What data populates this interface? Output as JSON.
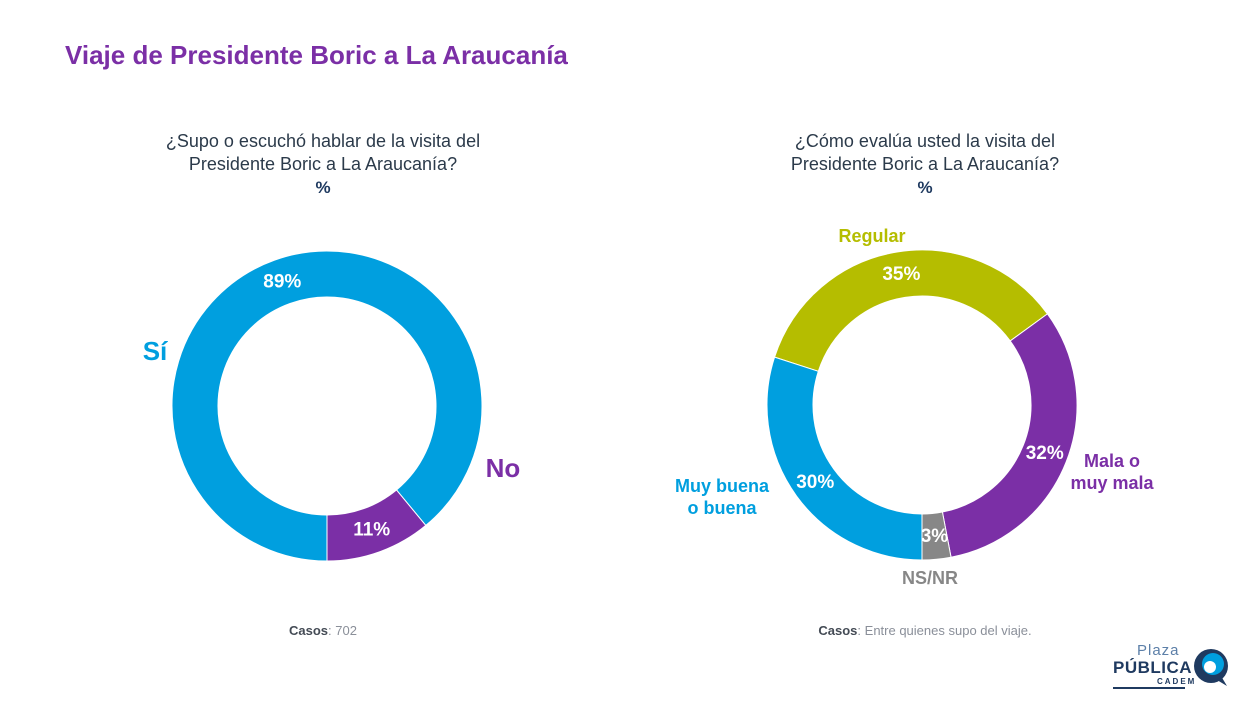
{
  "title": "Viaje de Presidente Boric a La Araucanía",
  "charts": {
    "left": {
      "question_line1": "¿Supo o escuchó hablar de la visita del",
      "question_line2": "Presidente Boric a La Araucanía?",
      "unit": "%",
      "cases_label": "Casos",
      "cases_text": ": 702"
    },
    "right": {
      "question_line1": "¿Cómo evalúa usted la visita del",
      "question_line2": "Presidente Boric a La Araucanía?",
      "unit": "%",
      "cases_label": "Casos",
      "cases_text": ": Entre quienes supo del viaje."
    }
  },
  "chart_data": [
    {
      "type": "pie",
      "donut": true,
      "categories": [
        "Sí",
        "No"
      ],
      "values": [
        89,
        11
      ],
      "value_labels": [
        "89%",
        "11%"
      ],
      "colors": [
        "#009fdf",
        "#7b2fa6"
      ]
    },
    {
      "type": "pie",
      "donut": true,
      "categories": [
        "Regular",
        "Mala o muy mala",
        "NS/NR",
        "Muy buena o buena"
      ],
      "values": [
        35,
        32,
        3,
        30
      ],
      "value_labels": [
        "35%",
        "32%",
        "3%",
        "30%"
      ],
      "colors": [
        "#b5bd00",
        "#7b2fa6",
        "#878787",
        "#009fdf"
      ]
    }
  ],
  "logo": {
    "line1": "Plaza",
    "line2": "PÚBLICA",
    "line3": "CADEM"
  }
}
